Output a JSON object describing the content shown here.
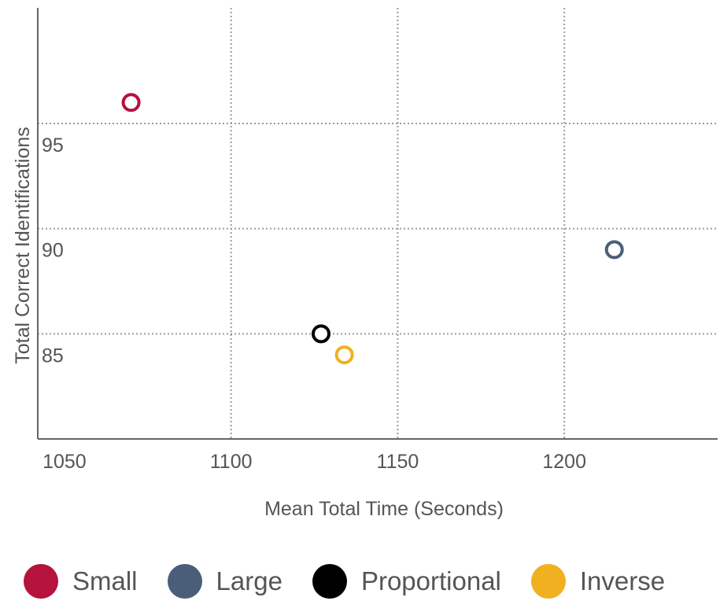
{
  "chart_data": {
    "type": "scatter",
    "xlabel": "Mean Total Time (Seconds)",
    "ylabel": "Total Correct Identifications",
    "xlim": [
      1042,
      1246
    ],
    "ylim": [
      80,
      100.5
    ],
    "xticks": [
      1050,
      1100,
      1150,
      1200
    ],
    "yticks": [
      85,
      90,
      95
    ],
    "grid": true,
    "legend_position": "bottom",
    "series": [
      {
        "name": "Small",
        "color": "#B5123E",
        "points": [
          {
            "x": 1070,
            "y": 96
          }
        ]
      },
      {
        "name": "Large",
        "color": "#4A5E7A",
        "points": [
          {
            "x": 1215,
            "y": 89
          }
        ]
      },
      {
        "name": "Proportional",
        "color": "#000000",
        "points": [
          {
            "x": 1127,
            "y": 85
          }
        ]
      },
      {
        "name": "Inverse",
        "color": "#F0B020",
        "points": [
          {
            "x": 1134,
            "y": 84
          }
        ]
      }
    ]
  }
}
